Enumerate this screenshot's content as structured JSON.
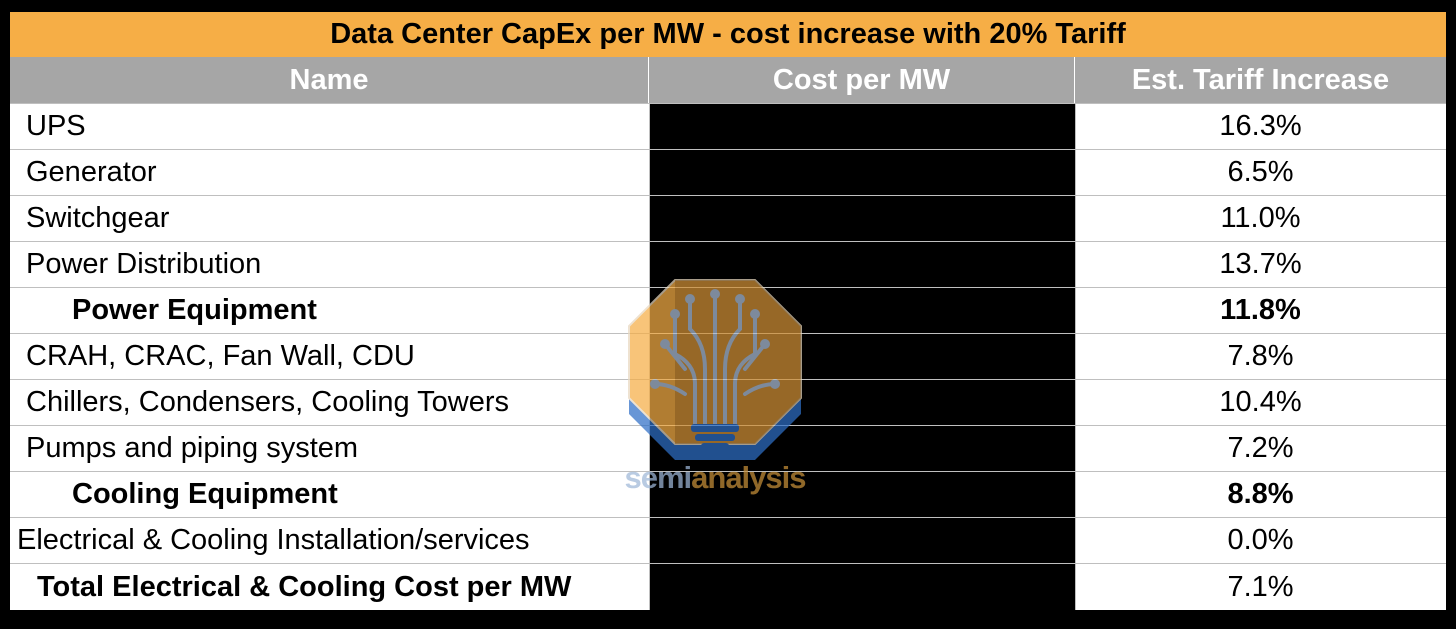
{
  "title": "Data Center CapEx per MW - cost increase with 20% Tariff",
  "columns": [
    "Name",
    "Cost per MW",
    "Est. Tariff Increase"
  ],
  "rows": [
    {
      "name": "UPS",
      "tariff": "16.3%"
    },
    {
      "name": "Generator",
      "tariff": "6.5%"
    },
    {
      "name": "Switchgear",
      "tariff": "11.0%"
    },
    {
      "name": "Power Distribution",
      "tariff": "13.7%"
    },
    {
      "name": "Power Equipment",
      "tariff": "11.8%"
    },
    {
      "name": "CRAH, CRAC, Fan Wall, CDU",
      "tariff": "7.8%"
    },
    {
      "name": "Chillers, Condensers, Cooling Towers",
      "tariff": "10.4%"
    },
    {
      "name": "Pumps and piping system",
      "tariff": "7.2%"
    },
    {
      "name": "Cooling Equipment",
      "tariff": "8.8%"
    },
    {
      "name": "Electrical & Cooling Installation/services",
      "tariff": "0.0%"
    },
    {
      "name": "Total Electrical & Cooling Cost per MW",
      "tariff": "7.1%"
    }
  ],
  "watermark": {
    "part1": "semi",
    "part2": "analysis",
    "icon": "lightbulb-circuit-icon"
  },
  "colors": {
    "title_bg": "#f6ae46",
    "header_bg": "#a6a6a6",
    "redacted": "#000000"
  }
}
